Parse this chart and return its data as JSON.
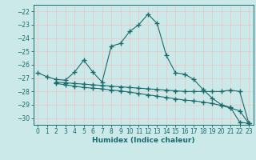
{
  "xlabel": "Humidex (Indice chaleur)",
  "background_color": "#cce9e9",
  "grid_color": "#e8c8c8",
  "line_color": "#1a6b6b",
  "xlim": [
    -0.5,
    23.5
  ],
  "ylim": [
    -30.5,
    -21.5
  ],
  "yticks": [
    -30,
    -29,
    -28,
    -27,
    -26,
    -25,
    -24,
    -23,
    -22
  ],
  "xticks": [
    0,
    1,
    2,
    3,
    4,
    5,
    6,
    7,
    8,
    9,
    10,
    11,
    12,
    13,
    14,
    15,
    16,
    17,
    18,
    19,
    20,
    21,
    22,
    23
  ],
  "line1_x": [
    0,
    1,
    2,
    3,
    4,
    5,
    6,
    7,
    8,
    9,
    10,
    11,
    12,
    13,
    14,
    15,
    16,
    17,
    18,
    19,
    20,
    21,
    22,
    23
  ],
  "line1_y": [
    -26.6,
    -26.9,
    -27.1,
    -27.15,
    -26.55,
    -25.65,
    -26.55,
    -27.3,
    -24.6,
    -24.4,
    -23.5,
    -23.0,
    -22.2,
    -22.9,
    -25.3,
    -26.6,
    -26.7,
    -27.1,
    -27.85,
    -28.5,
    -29.0,
    -29.2,
    -30.3,
    -30.4
  ],
  "line2_x": [
    2,
    3,
    4,
    5,
    6,
    7,
    8,
    9,
    10,
    11,
    12,
    13,
    14,
    15,
    16,
    17,
    18,
    19,
    20,
    21,
    22,
    23
  ],
  "line2_y": [
    -27.3,
    -27.35,
    -27.4,
    -27.45,
    -27.5,
    -27.55,
    -27.6,
    -27.65,
    -27.7,
    -27.75,
    -27.8,
    -27.85,
    -27.9,
    -27.95,
    -28.0,
    -28.0,
    -28.0,
    -28.0,
    -28.0,
    -27.9,
    -28.0,
    -30.4
  ],
  "line3_x": [
    2,
    3,
    4,
    5,
    6,
    7,
    8,
    9,
    10,
    11,
    12,
    13,
    14,
    15,
    16,
    17,
    18,
    19,
    20,
    21,
    22,
    23
  ],
  "line3_y": [
    -27.4,
    -27.5,
    -27.6,
    -27.7,
    -27.75,
    -27.8,
    -27.9,
    -27.95,
    -28.05,
    -28.15,
    -28.25,
    -28.35,
    -28.45,
    -28.55,
    -28.65,
    -28.7,
    -28.8,
    -28.9,
    -29.05,
    -29.25,
    -29.45,
    -30.4
  ]
}
